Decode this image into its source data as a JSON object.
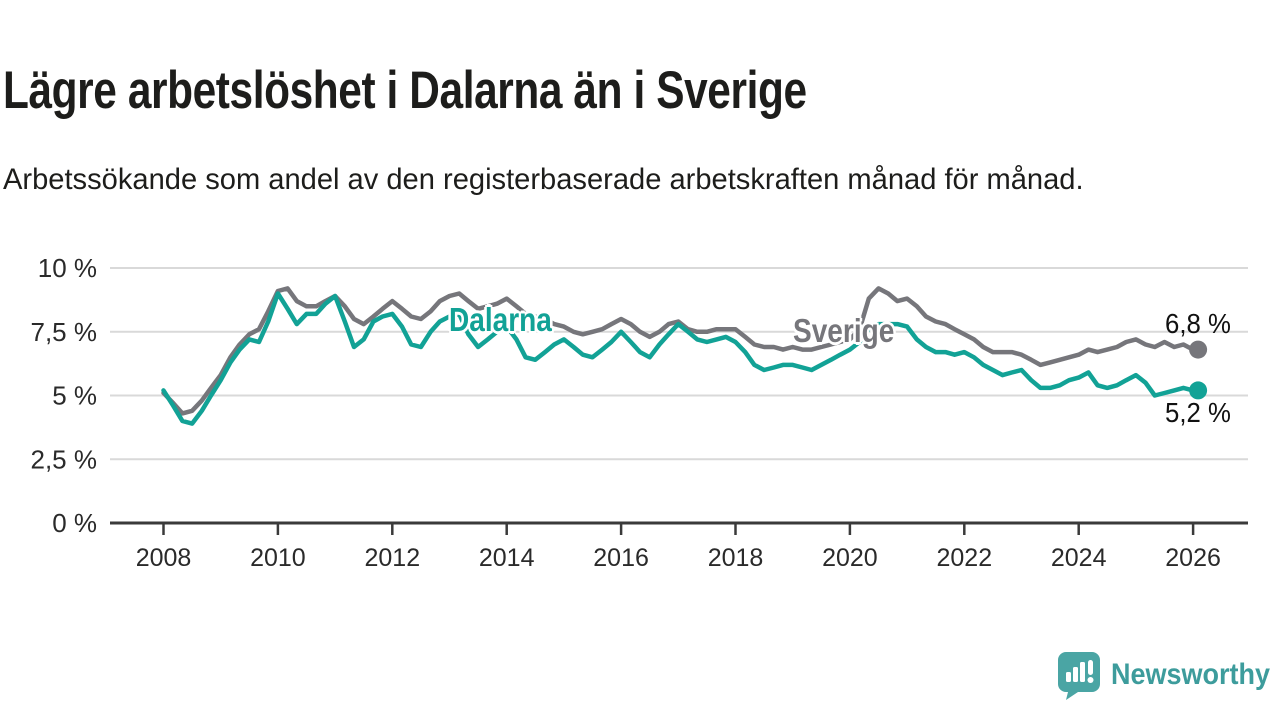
{
  "header": {
    "title": "Lägre arbetslöshet i Dalarna än i Sverige",
    "subtitle": "Arbetssökande som andel av den registerbaserade arbetskraften månad för månad."
  },
  "chart_data": {
    "type": "line",
    "title": "Lägre arbetslöshet i Dalarna än i Sverige",
    "xlabel": "",
    "ylabel": "",
    "unit": "%",
    "grid": "horizontal",
    "legend_position": "inline",
    "xlim": [
      2007.1,
      2027
    ],
    "ylim": [
      0,
      10.5
    ],
    "y_ticks": [
      {
        "value": 0,
        "label": "0 %"
      },
      {
        "value": 2.5,
        "label": "2,5 %"
      },
      {
        "value": 5,
        "label": "5 %"
      },
      {
        "value": 7.5,
        "label": "7,5 %"
      },
      {
        "value": 10,
        "label": "10 %"
      }
    ],
    "x_ticks": [
      {
        "value": 2008,
        "label": "2008"
      },
      {
        "value": 2010,
        "label": "2010"
      },
      {
        "value": 2012,
        "label": "2012"
      },
      {
        "value": 2014,
        "label": "2014"
      },
      {
        "value": 2016,
        "label": "2016"
      },
      {
        "value": 2018,
        "label": "2018"
      },
      {
        "value": 2020,
        "label": "2020"
      },
      {
        "value": 2022,
        "label": "2022"
      },
      {
        "value": 2024,
        "label": "2024"
      },
      {
        "value": 2026,
        "label": "2026"
      }
    ],
    "x": [
      2008,
      2008.17,
      2008.33,
      2008.5,
      2008.67,
      2008.83,
      2009,
      2009.17,
      2009.33,
      2009.5,
      2009.67,
      2009.83,
      2010,
      2010.17,
      2010.33,
      2010.5,
      2010.67,
      2010.83,
      2011,
      2011.17,
      2011.33,
      2011.5,
      2011.67,
      2011.83,
      2012,
      2012.17,
      2012.33,
      2012.5,
      2012.67,
      2012.83,
      2013,
      2013.17,
      2013.33,
      2013.5,
      2013.67,
      2013.83,
      2014,
      2014.17,
      2014.33,
      2014.5,
      2014.67,
      2014.83,
      2015,
      2015.17,
      2015.33,
      2015.5,
      2015.67,
      2015.83,
      2016,
      2016.17,
      2016.33,
      2016.5,
      2016.67,
      2016.83,
      2017,
      2017.17,
      2017.33,
      2017.5,
      2017.67,
      2017.83,
      2018,
      2018.17,
      2018.33,
      2018.5,
      2018.67,
      2018.83,
      2019,
      2019.17,
      2019.33,
      2019.5,
      2019.67,
      2019.83,
      2020,
      2020.17,
      2020.33,
      2020.5,
      2020.67,
      2020.83,
      2021,
      2021.17,
      2021.33,
      2021.5,
      2021.67,
      2021.83,
      2022,
      2022.17,
      2022.33,
      2022.5,
      2022.67,
      2022.83,
      2023,
      2023.17,
      2023.33,
      2023.5,
      2023.67,
      2023.83,
      2024,
      2024.17,
      2024.33,
      2024.5,
      2024.67,
      2024.83,
      2025,
      2025.17,
      2025.33,
      2025.5,
      2025.67,
      2025.83,
      2026
    ],
    "series": [
      {
        "name": "Dalarna",
        "inline_label": "Dalarna",
        "color": "#12a296",
        "end_label": "5,2 %",
        "end_value": 5.2,
        "values": [
          5.2,
          4.6,
          4.0,
          3.9,
          4.4,
          5.0,
          5.6,
          6.3,
          6.8,
          7.2,
          7.1,
          7.9,
          9.0,
          8.4,
          7.8,
          8.2,
          8.2,
          8.6,
          8.9,
          7.9,
          6.9,
          7.2,
          7.9,
          8.1,
          8.2,
          7.7,
          7.0,
          6.9,
          7.5,
          7.9,
          8.1,
          8.2,
          7.4,
          6.9,
          7.2,
          7.5,
          7.7,
          7.2,
          6.5,
          6.4,
          6.7,
          7.0,
          7.2,
          6.9,
          6.6,
          6.5,
          6.8,
          7.1,
          7.5,
          7.1,
          6.7,
          6.5,
          7.0,
          7.4,
          7.8,
          7.5,
          7.2,
          7.1,
          7.2,
          7.3,
          7.1,
          6.7,
          6.2,
          6.0,
          6.1,
          6.2,
          6.2,
          6.1,
          6.0,
          6.2,
          6.4,
          6.6,
          6.8,
          7.1,
          7.6,
          7.8,
          7.8,
          7.8,
          7.7,
          7.2,
          6.9,
          6.7,
          6.7,
          6.6,
          6.7,
          6.5,
          6.2,
          6.0,
          5.8,
          5.9,
          6.0,
          5.6,
          5.3,
          5.3,
          5.4,
          5.6,
          5.7,
          5.9,
          5.4,
          5.3,
          5.4,
          5.6,
          5.8,
          5.5,
          5.0,
          5.1,
          5.2,
          5.3,
          5.2
        ]
      },
      {
        "name": "Sverige",
        "inline_label": "Sverige",
        "color": "#76767b",
        "end_label": "6,8 %",
        "end_value": 6.8,
        "values": [
          5.1,
          4.7,
          4.3,
          4.4,
          4.8,
          5.3,
          5.8,
          6.5,
          7.0,
          7.4,
          7.6,
          8.3,
          9.1,
          9.2,
          8.7,
          8.5,
          8.5,
          8.7,
          8.9,
          8.5,
          8.0,
          7.8,
          8.1,
          8.4,
          8.7,
          8.4,
          8.1,
          8.0,
          8.3,
          8.7,
          8.9,
          9.0,
          8.7,
          8.4,
          8.5,
          8.6,
          8.8,
          8.5,
          8.2,
          8.1,
          8.0,
          7.8,
          7.7,
          7.5,
          7.4,
          7.5,
          7.6,
          7.8,
          8.0,
          7.8,
          7.5,
          7.3,
          7.5,
          7.8,
          7.9,
          7.6,
          7.5,
          7.5,
          7.6,
          7.6,
          7.6,
          7.3,
          7.0,
          6.9,
          6.9,
          6.8,
          6.9,
          6.8,
          6.8,
          6.9,
          7.0,
          7.1,
          7.2,
          7.6,
          8.8,
          9.2,
          9.0,
          8.7,
          8.8,
          8.5,
          8.1,
          7.9,
          7.8,
          7.6,
          7.4,
          7.2,
          6.9,
          6.7,
          6.7,
          6.7,
          6.6,
          6.4,
          6.2,
          6.3,
          6.4,
          6.5,
          6.6,
          6.8,
          6.7,
          6.8,
          6.9,
          7.1,
          7.2,
          7.0,
          6.9,
          7.1,
          6.9,
          7.0,
          6.8
        ]
      }
    ],
    "style": {
      "grid_color": "#d9d9d9",
      "axis_color": "#3a3a3a",
      "tick_text_color": "#2a2a2a"
    }
  },
  "branding": {
    "name": "Newsworthy",
    "icon": "bar-chart-speech-bubble-icon",
    "color": "#3d9c9c"
  }
}
